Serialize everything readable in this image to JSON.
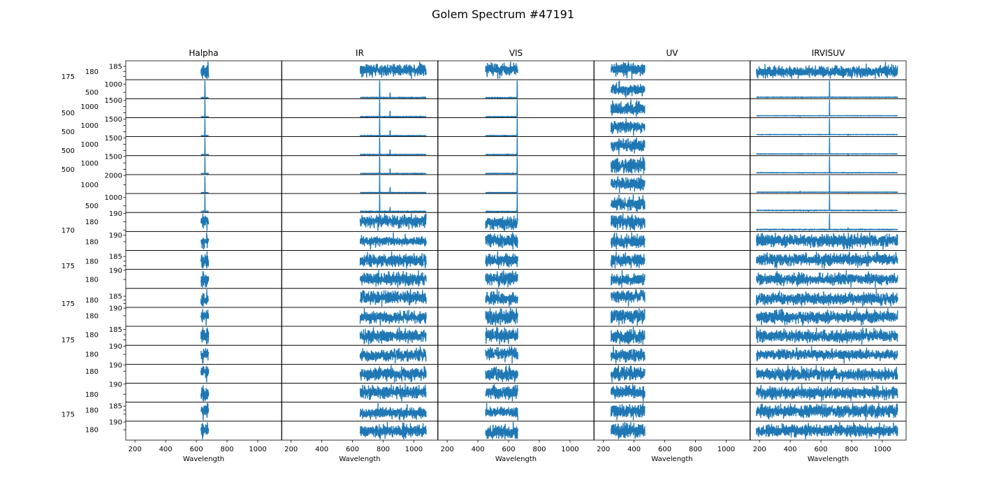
{
  "chart_data": {
    "type": "line",
    "title": "Golem Spectrum #47191",
    "xlabel": "Wavelength",
    "xlim": [
      140,
      1155
    ],
    "xticks": [
      200,
      400,
      600,
      800,
      1000
    ],
    "line_color": "#1f77b4",
    "baseline": 180,
    "noise_sd": 4,
    "columns": [
      {
        "title": "Halpha",
        "xrange": [
          630,
          680
        ]
      },
      {
        "title": "IR",
        "xrange": [
          650,
          1080
        ]
      },
      {
        "title": "VIS",
        "xrange": [
          450,
          660
        ]
      },
      {
        "title": "UV",
        "xrange": [
          250,
          470
        ]
      },
      {
        "title": "IRVISUV",
        "xrange": [
          180,
          1100
        ]
      }
    ],
    "rows": [
      {
        "yticks": [
          185,
          180,
          175
        ],
        "peaks": {}
      },
      {
        "yticks": [
          1000,
          500
        ],
        "peaks": {
          "Halpha": [
            [
              656,
              1300
            ]
          ],
          "IR": [
            [
              777,
              1300
            ],
            [
              845,
              520
            ]
          ],
          "VIS": [
            [
              656,
              1300
            ]
          ],
          "IRVISUV": [
            [
              656,
              1300
            ],
            [
              486,
              140
            ]
          ]
        }
      },
      {
        "yticks": [
          1500,
          1000,
          500
        ],
        "peaks": {
          "Halpha": [
            [
              656,
              1650
            ]
          ],
          "IR": [
            [
              777,
              1650
            ],
            [
              845,
              650
            ]
          ],
          "VIS": [
            [
              656,
              1650
            ]
          ],
          "IRVISUV": [
            [
              656,
              1650
            ],
            [
              486,
              180
            ],
            [
              464,
              60
            ]
          ]
        }
      },
      {
        "yticks": [
          1500,
          1000,
          500
        ],
        "peaks": {
          "Halpha": [
            [
              656,
              1650
            ]
          ],
          "IR": [
            [
              777,
              1650
            ],
            [
              845,
              650
            ]
          ],
          "VIS": [
            [
              656,
              1650
            ]
          ],
          "IRVISUV": [
            [
              656,
              1650
            ],
            [
              486,
              170
            ],
            [
              464,
              120
            ],
            [
              777,
              60
            ]
          ]
        }
      },
      {
        "yticks": [
          1500,
          1000,
          500
        ],
        "peaks": {
          "Halpha": [
            [
              656,
              1650
            ]
          ],
          "IR": [
            [
              777,
              1650
            ],
            [
              845,
              600
            ]
          ],
          "VIS": [
            [
              656,
              1650
            ]
          ],
          "IRVISUV": [
            [
              656,
              1650
            ],
            [
              486,
              170
            ],
            [
              464,
              150
            ],
            [
              777,
              90
            ]
          ]
        }
      },
      {
        "yticks": [
          1500,
          1000,
          500
        ],
        "peaks": {
          "Halpha": [
            [
              656,
              1600
            ]
          ],
          "IR": [
            [
              777,
              1600
            ],
            [
              845,
              600
            ]
          ],
          "VIS": [
            [
              656,
              1600
            ]
          ],
          "IRVISUV": [
            [
              656,
              1600
            ],
            [
              486,
              150
            ],
            [
              464,
              150
            ],
            [
              777,
              90
            ]
          ]
        }
      },
      {
        "yticks": [
          2000,
          1000
        ],
        "peaks": {
          "Halpha": [
            [
              656,
              2050
            ]
          ],
          "IR": [
            [
              777,
              2050
            ],
            [
              845,
              800
            ]
          ],
          "VIS": [
            [
              656,
              2050
            ]
          ],
          "IRVISUV": [
            [
              656,
              2050
            ],
            [
              486,
              200
            ],
            [
              464,
              300
            ],
            [
              777,
              120
            ]
          ]
        }
      },
      {
        "yticks": [
          1000,
          500
        ],
        "peaks": {
          "Halpha": [
            [
              656,
              1250
            ]
          ],
          "IR": [
            [
              777,
              1250
            ],
            [
              845,
              450
            ]
          ],
          "VIS": [
            [
              656,
              1250
            ]
          ],
          "IRVISUV": [
            [
              656,
              1250
            ],
            [
              486,
              150
            ],
            [
              464,
              250
            ],
            [
              520,
              80
            ],
            [
              777,
              160
            ]
          ]
        }
      },
      {
        "yticks": [
          190,
          180,
          170
        ],
        "peaks": {
          "IRVISUV": [
            [
              656,
              1000
            ],
            [
              777,
              300
            ],
            [
              486,
              120
            ]
          ]
        }
      },
      {
        "yticks": [
          190,
          180
        ],
        "peaks": {}
      },
      {
        "yticks": [
          185,
          180,
          175
        ],
        "peaks": {}
      },
      {
        "yticks": [
          190,
          180
        ],
        "peaks": {}
      },
      {
        "yticks": [
          185,
          180,
          175
        ],
        "peaks": {}
      },
      {
        "yticks": [
          190,
          180
        ],
        "peaks": {}
      },
      {
        "yticks": [
          185,
          180,
          175
        ],
        "peaks": {}
      },
      {
        "yticks": [
          190,
          180
        ],
        "peaks": {}
      },
      {
        "yticks": [
          190,
          180
        ],
        "peaks": {}
      },
      {
        "yticks": [
          190,
          180
        ],
        "peaks": {}
      },
      {
        "yticks": [
          185,
          180,
          175
        ],
        "peaks": {}
      },
      {
        "yticks": [
          190,
          180
        ],
        "peaks": {}
      }
    ]
  }
}
